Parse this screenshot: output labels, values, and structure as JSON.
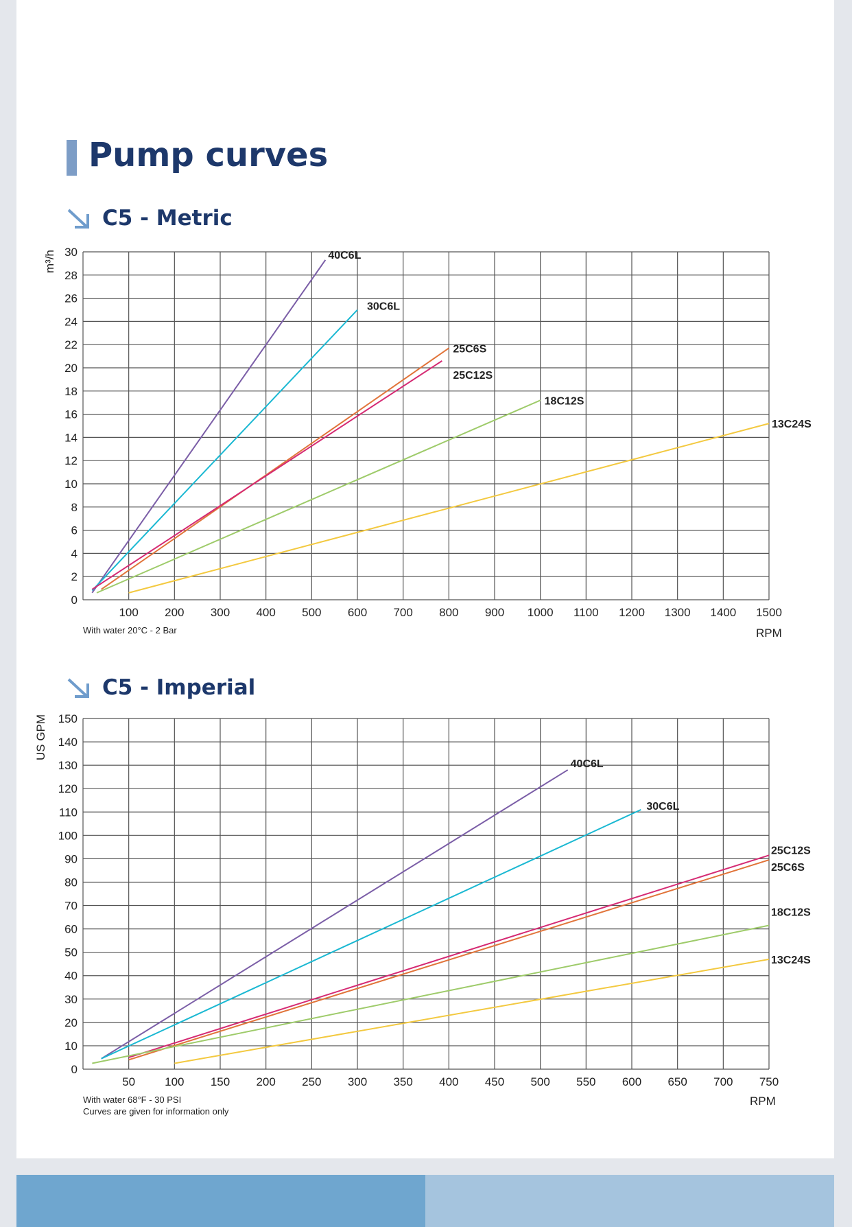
{
  "page": {
    "title": "Pump curves"
  },
  "colors": {
    "band_dark": "#19386e",
    "band_light": "#72a9cf",
    "title": "#1d386b",
    "grid": "#555555"
  },
  "sections": {
    "metric": {
      "title": "C5 - Metric",
      "note": "With water 20°C - 2 Bar",
      "x_unit": "RPM",
      "y_unit": "m³/h"
    },
    "imperial": {
      "title": "C5 - Imperial",
      "note": "With water 68°F - 30 PSI",
      "note2": "Curves are given for information only",
      "x_unit": "RPM",
      "y_unit": "US GPM"
    }
  },
  "chart_data": [
    {
      "type": "line",
      "title": "C5 - Metric",
      "xlabel": "RPM",
      "ylabel": "m³/h",
      "xlim": [
        0,
        1500
      ],
      "ylim": [
        0,
        30
      ],
      "xticks": [
        100,
        200,
        300,
        400,
        500,
        600,
        700,
        800,
        900,
        1000,
        1100,
        1200,
        1300,
        1400,
        1500
      ],
      "yticks": [
        0,
        2,
        4,
        6,
        8,
        10,
        12,
        14,
        16,
        18,
        20,
        22,
        24,
        26,
        28,
        30
      ],
      "grid": true,
      "series": [
        {
          "name": "40C6L",
          "color": "#7b5ea7",
          "x": [
            20,
            530
          ],
          "y": [
            0.6,
            29.3
          ]
        },
        {
          "name": "30C6L",
          "color": "#1ab8d2",
          "x": [
            20,
            600
          ],
          "y": [
            0.8,
            25.0
          ]
        },
        {
          "name": "25C6S",
          "color": "#e1743a",
          "x": [
            40,
            800
          ],
          "y": [
            0.9,
            21.7
          ]
        },
        {
          "name": "25C12S",
          "color": "#d52a73",
          "x": [
            20,
            785
          ],
          "y": [
            0.9,
            20.6
          ]
        },
        {
          "name": "18C12S",
          "color": "#9ecb6a",
          "x": [
            30,
            1000
          ],
          "y": [
            0.6,
            17.2
          ]
        },
        {
          "name": "13C24S",
          "color": "#f3c940",
          "x": [
            100,
            1500
          ],
          "y": [
            0.6,
            15.2
          ]
        }
      ]
    },
    {
      "type": "line",
      "title": "C5 - Imperial",
      "xlabel": "RPM",
      "ylabel": "US GPM",
      "xlim": [
        0,
        750
      ],
      "ylim": [
        0,
        150
      ],
      "xticks": [
        50,
        100,
        150,
        200,
        250,
        300,
        350,
        400,
        450,
        500,
        550,
        600,
        650,
        700,
        750
      ],
      "yticks": [
        0,
        10,
        20,
        30,
        40,
        50,
        60,
        70,
        80,
        90,
        100,
        110,
        120,
        130,
        140,
        150
      ],
      "grid": true,
      "series": [
        {
          "name": "40C6L",
          "color": "#7b5ea7",
          "x": [
            20,
            530
          ],
          "y": [
            4.5,
            128
          ]
        },
        {
          "name": "30C6L",
          "color": "#1ab8d2",
          "x": [
            20,
            610
          ],
          "y": [
            4.5,
            111
          ]
        },
        {
          "name": "25C12S",
          "color": "#d52a73",
          "x": [
            50,
            750
          ],
          "y": [
            5,
            91.5
          ]
        },
        {
          "name": "25C6S",
          "color": "#e1743a",
          "x": [
            50,
            750
          ],
          "y": [
            4,
            89.5
          ]
        },
        {
          "name": "18C12S",
          "color": "#9ecb6a",
          "x": [
            10,
            750
          ],
          "y": [
            2.5,
            61.5
          ]
        },
        {
          "name": "13C24S",
          "color": "#f3c940",
          "x": [
            100,
            750
          ],
          "y": [
            2.5,
            47
          ]
        }
      ]
    }
  ]
}
